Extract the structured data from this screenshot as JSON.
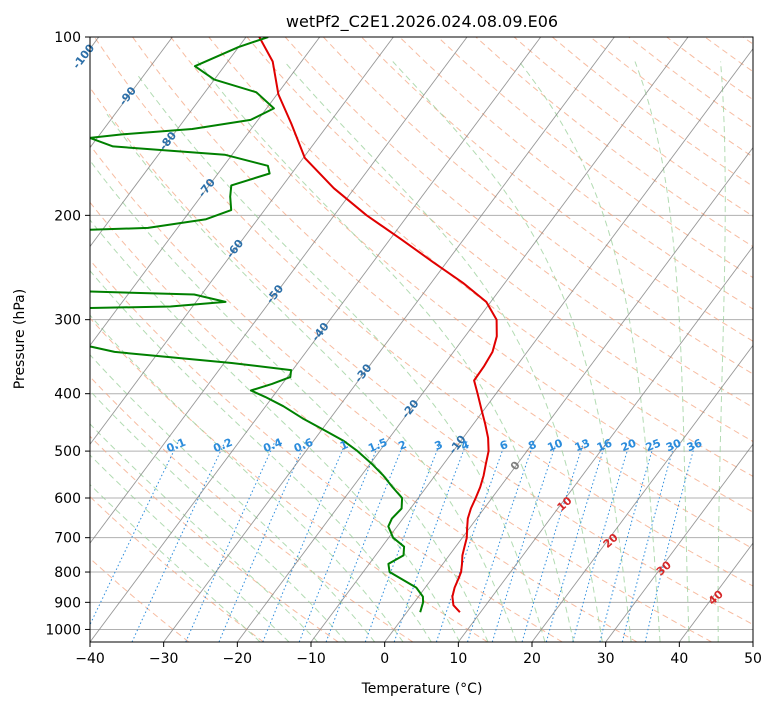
{
  "chart_data": {
    "type": "skew-t log-p sounding",
    "title": "wetPf2_C2E1.2026.024.08.09.E06",
    "xlabel": "Temperature (°C)",
    "ylabel": "Pressure (hPa)",
    "xlim": [
      -40,
      50
    ],
    "ylim": [
      1050,
      100
    ],
    "y_scale": "log",
    "x_ticks": [
      -40,
      -30,
      -20,
      -10,
      0,
      10,
      20,
      30,
      40,
      50
    ],
    "y_ticks": [
      100,
      200,
      300,
      400,
      500,
      600,
      700,
      800,
      900,
      1000
    ],
    "grid": true,
    "colors": {
      "temperature": "#e00000",
      "dewpoint": "#008000",
      "isotherm": "#7f7f7f",
      "dry_adiabat": "#f4a582",
      "moist_adiabat": "#9fd29f",
      "mixing_ratio": "#2b8cdc",
      "isotherm_label": "#2c6fa8",
      "moist_label": "#d62728"
    },
    "temperature_profile": [
      [
        935,
        7.2
      ],
      [
        910,
        5.6
      ],
      [
        880,
        4.6
      ],
      [
        850,
        4.0
      ],
      [
        820,
        3.6
      ],
      [
        800,
        3.3
      ],
      [
        775,
        2.6
      ],
      [
        750,
        1.8
      ],
      [
        725,
        1.2
      ],
      [
        700,
        0.6
      ],
      [
        675,
        -0.3
      ],
      [
        650,
        -1.2
      ],
      [
        625,
        -1.8
      ],
      [
        600,
        -2.2
      ],
      [
        575,
        -2.7
      ],
      [
        550,
        -3.4
      ],
      [
        525,
        -4.3
      ],
      [
        500,
        -5.2
      ],
      [
        475,
        -6.6
      ],
      [
        450,
        -8.4
      ],
      [
        425,
        -10.4
      ],
      [
        400,
        -12.5
      ],
      [
        380,
        -14.3
      ],
      [
        360,
        -14.4
      ],
      [
        340,
        -14.7
      ],
      [
        320,
        -15.7
      ],
      [
        300,
        -17.4
      ],
      [
        280,
        -20.6
      ],
      [
        260,
        -25.7
      ],
      [
        240,
        -31.8
      ],
      [
        220,
        -38.3
      ],
      [
        200,
        -45.6
      ],
      [
        180,
        -52.8
      ],
      [
        160,
        -59.8
      ],
      [
        140,
        -65.1
      ],
      [
        125,
        -69.8
      ],
      [
        110,
        -73.9
      ],
      [
        100,
        -78.2
      ]
    ],
    "dewpoint_profile": [
      [
        935,
        1.8
      ],
      [
        900,
        1.2
      ],
      [
        880,
        0.6
      ],
      [
        850,
        -1.2
      ],
      [
        800,
        -6.4
      ],
      [
        775,
        -7.4
      ],
      [
        750,
        -6.2
      ],
      [
        725,
        -7.0
      ],
      [
        700,
        -9.4
      ],
      [
        670,
        -11.2
      ],
      [
        650,
        -11.5
      ],
      [
        625,
        -11.2
      ],
      [
        600,
        -12.2
      ],
      [
        575,
        -14.6
      ],
      [
        550,
        -17.0
      ],
      [
        525,
        -19.8
      ],
      [
        500,
        -23.0
      ],
      [
        480,
        -26.0
      ],
      [
        460,
        -29.8
      ],
      [
        440,
        -33.8
      ],
      [
        420,
        -37.6
      ],
      [
        405,
        -41.0
      ],
      [
        395,
        -43.6
      ],
      [
        385,
        -41.4
      ],
      [
        375,
        -39.6
      ],
      [
        365,
        -40.2
      ],
      [
        355,
        -49.0
      ],
      [
        340,
        -66.0
      ],
      [
        300,
        -89.0
      ],
      [
        290,
        -94.0
      ],
      [
        285,
        -63.0
      ],
      [
        280,
        -56.0
      ],
      [
        272,
        -61.0
      ],
      [
        266,
        -89.0
      ],
      [
        255,
        -105.0
      ],
      [
        240,
        -100.0
      ],
      [
        225,
        -93.0
      ],
      [
        213,
        -89.0
      ],
      [
        210,
        -74.0
      ],
      [
        203,
        -67.0
      ],
      [
        196,
        -64.5
      ],
      [
        186,
        -66.0
      ],
      [
        178,
        -67.0
      ],
      [
        170,
        -63.0
      ],
      [
        165,
        -64.0
      ],
      [
        158,
        -71.0
      ],
      [
        153,
        -87.0
      ],
      [
        148,
        -91.0
      ],
      [
        146,
        -87.0
      ],
      [
        143,
        -78.0
      ],
      [
        138,
        -71.0
      ],
      [
        132,
        -69.0
      ],
      [
        124,
        -73.0
      ],
      [
        118,
        -80.0
      ],
      [
        112,
        -84.0
      ],
      [
        104,
        -80.0
      ],
      [
        100,
        -77.0
      ]
    ],
    "isotherm_labels": [
      "-100",
      "-90",
      "-80",
      "-70",
      "-60",
      "-50",
      "-40",
      "-30",
      "-20",
      "-10",
      "0"
    ],
    "mixing_ratio_labels": [
      "0.1",
      "0.2",
      "0.4",
      "0.6",
      "1",
      "1.5",
      "2",
      "3",
      "4",
      "6",
      "8",
      "10",
      "13",
      "16",
      "20",
      "25",
      "30",
      "36"
    ],
    "moist_adiabat_labels": [
      "10",
      "20",
      "30",
      "40"
    ]
  }
}
